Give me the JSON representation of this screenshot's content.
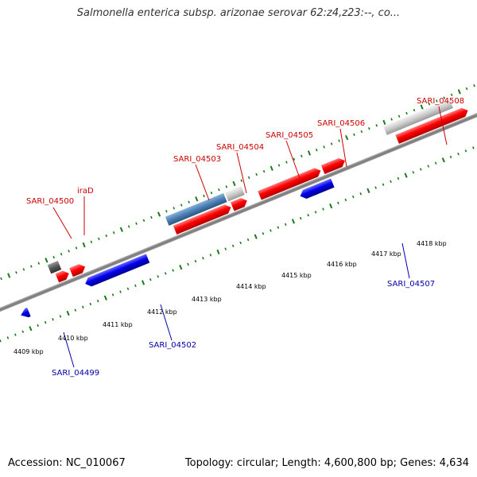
{
  "title": "Salmonella enterica subsp. arizonae serovar 62:z4,z23:--, co...",
  "footer": {
    "accession": "Accession: NC_010067",
    "summary": "Topology: circular; Length: 4,600,800 bp; Genes: 4,634"
  },
  "colors": {
    "forward_label": "#cc0000",
    "reverse_label": "#0000aa",
    "backbone": "#888888",
    "tick": "#1a7a1a",
    "cds_forward": "#ff0000",
    "cds_reverse": "#0000ee"
  },
  "scale_labels": [
    "4409 kbp",
    "4410 kbp",
    "4411 kbp",
    "4412 kbp",
    "4413 kbp",
    "4414 kbp",
    "4415 kbp",
    "4416 kbp",
    "4417 kbp",
    "4418 kbp"
  ],
  "gene_labels_forward": [
    "SARI_04500",
    "iraD",
    "SARI_04503",
    "SARI_04504",
    "SARI_04505",
    "SARI_04506",
    "SARI_04508"
  ],
  "gene_labels_reverse": [
    "SARI_04499",
    "SARI_04502",
    "SARI_04507"
  ]
}
